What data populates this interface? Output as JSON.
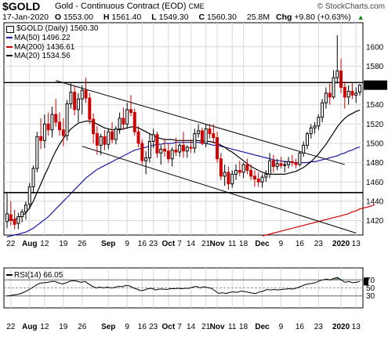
{
  "header": {
    "symbol": "$GOLD",
    "name": "Gold - Continuous Contract (EOD)",
    "exchange": "CME",
    "site": "© StockCharts.com",
    "date": "17-Jan-2020",
    "open_label": "O",
    "open": "1553.00",
    "high_label": "H",
    "high": "1561.40",
    "low_label": "L",
    "low": "1549.30",
    "close_label": "C",
    "close": "1560.30",
    "volume": "25.8M",
    "chg_label": "Chg",
    "chg": "+9.80 (+0.63%)",
    "chg_arrow": "▲"
  },
  "legend": {
    "main": "$GOLD (Daily) 1560.30",
    "ma50": "MA(50) 1496.22",
    "ma200": "MA(200) 1436.61",
    "ma20": "MA(20) 1534.56"
  },
  "rsi_legend": "RSI(14) 66.05",
  "colors": {
    "up": "#000000",
    "down": "#cc0000",
    "ma50": "#1a1a9c",
    "ma200": "#cc0000",
    "ma20": "#000000",
    "rsi_fill": "#6f8f6f"
  },
  "chart_data": [
    {
      "type": "candlestick",
      "title": "$GOLD (Daily) 1560.30",
      "ylim": [
        1405,
        1625
      ],
      "y_ticks": [
        "1420",
        "1440",
        "1460",
        "1480",
        "1500",
        "1520",
        "1540",
        "1560",
        "1580",
        "1600"
      ],
      "x_ticks": [
        "22",
        "Aug",
        "12",
        "19",
        "26",
        "Sep",
        "9",
        "16",
        "23",
        "Oct",
        "7",
        "14",
        "21",
        "Nov",
        "11",
        "18",
        "Dec",
        "9",
        "16",
        "23",
        "2020",
        "13"
      ],
      "candles": [
        [
          1419,
          1448,
          1412,
          1427
        ],
        [
          1426,
          1440,
          1415,
          1420
        ],
        [
          1421,
          1431,
          1411,
          1416
        ],
        [
          1417,
          1428,
          1411,
          1424
        ],
        [
          1424,
          1432,
          1418,
          1429
        ],
        [
          1429,
          1440,
          1421,
          1436
        ],
        [
          1437,
          1459,
          1432,
          1455
        ],
        [
          1455,
          1477,
          1448,
          1474
        ],
        [
          1474,
          1512,
          1470,
          1507
        ],
        [
          1507,
          1526,
          1494,
          1503
        ],
        [
          1503,
          1530,
          1495,
          1520
        ],
        [
          1520,
          1532,
          1508,
          1514
        ],
        [
          1514,
          1538,
          1506,
          1530
        ],
        [
          1530,
          1546,
          1517,
          1522
        ],
        [
          1522,
          1532,
          1508,
          1514
        ],
        [
          1514,
          1526,
          1497,
          1508
        ],
        [
          1508,
          1545,
          1503,
          1541
        ],
        [
          1541,
          1562,
          1536,
          1553
        ],
        [
          1553,
          1560,
          1529,
          1535
        ],
        [
          1535,
          1552,
          1522,
          1546
        ],
        [
          1546,
          1560,
          1530,
          1555
        ],
        [
          1555,
          1568,
          1542,
          1547
        ],
        [
          1547,
          1552,
          1520,
          1525
        ],
        [
          1525,
          1531,
          1500,
          1510
        ],
        [
          1510,
          1518,
          1488,
          1498
        ],
        [
          1498,
          1510,
          1488,
          1507
        ],
        [
          1507,
          1514,
          1493,
          1499
        ],
        [
          1499,
          1515,
          1494,
          1512
        ],
        [
          1512,
          1522,
          1500,
          1504
        ],
        [
          1504,
          1518,
          1499,
          1515
        ],
        [
          1515,
          1532,
          1510,
          1526
        ],
        [
          1526,
          1537,
          1514,
          1520
        ],
        [
          1520,
          1542,
          1515,
          1535
        ],
        [
          1535,
          1550,
          1528,
          1532
        ],
        [
          1532,
          1536,
          1508,
          1512
        ],
        [
          1512,
          1518,
          1496,
          1500
        ],
        [
          1500,
          1504,
          1478,
          1482
        ],
        [
          1482,
          1492,
          1468,
          1485
        ],
        [
          1485,
          1510,
          1480,
          1502
        ],
        [
          1502,
          1515,
          1495,
          1509
        ],
        [
          1509,
          1512,
          1485,
          1490
        ],
        [
          1490,
          1498,
          1478,
          1494
        ],
        [
          1494,
          1505,
          1486,
          1492
        ],
        [
          1492,
          1500,
          1480,
          1484
        ],
        [
          1484,
          1496,
          1476,
          1493
        ],
        [
          1493,
          1506,
          1487,
          1491
        ],
        [
          1491,
          1500,
          1486,
          1498
        ],
        [
          1498,
          1512,
          1485,
          1492
        ],
        [
          1492,
          1498,
          1485,
          1496
        ],
        [
          1496,
          1504,
          1490,
          1495
        ],
        [
          1495,
          1515,
          1490,
          1510
        ],
        [
          1510,
          1520,
          1506,
          1513
        ],
        [
          1513,
          1516,
          1498,
          1500
        ],
        [
          1500,
          1520,
          1496,
          1515
        ],
        [
          1515,
          1520,
          1505,
          1510
        ],
        [
          1510,
          1520,
          1500,
          1506
        ],
        [
          1506,
          1512,
          1480,
          1484
        ],
        [
          1484,
          1490,
          1462,
          1466
        ],
        [
          1466,
          1478,
          1456,
          1470
        ],
        [
          1470,
          1476,
          1452,
          1458
        ],
        [
          1458,
          1472,
          1454,
          1468
        ],
        [
          1468,
          1478,
          1462,
          1472
        ],
        [
          1472,
          1482,
          1466,
          1470
        ],
        [
          1470,
          1480,
          1464,
          1478
        ],
        [
          1478,
          1484,
          1468,
          1472
        ],
        [
          1472,
          1478,
          1462,
          1466
        ],
        [
          1466,
          1472,
          1455,
          1463
        ],
        [
          1463,
          1470,
          1455,
          1460
        ],
        [
          1460,
          1468,
          1454,
          1465
        ],
        [
          1465,
          1472,
          1460,
          1468
        ],
        [
          1468,
          1490,
          1464,
          1482
        ],
        [
          1482,
          1488,
          1470,
          1476
        ],
        [
          1476,
          1484,
          1472,
          1479
        ],
        [
          1479,
          1486,
          1474,
          1477
        ],
        [
          1477,
          1482,
          1470,
          1478
        ],
        [
          1478,
          1486,
          1474,
          1481
        ],
        [
          1481,
          1488,
          1476,
          1480
        ],
        [
          1480,
          1484,
          1474,
          1478
        ],
        [
          1478,
          1492,
          1476,
          1490
        ],
        [
          1490,
          1502,
          1486,
          1498
        ],
        [
          1498,
          1512,
          1494,
          1510
        ],
        [
          1510,
          1520,
          1505,
          1516
        ],
        [
          1516,
          1522,
          1510,
          1518
        ],
        [
          1518,
          1530,
          1514,
          1527
        ],
        [
          1527,
          1546,
          1522,
          1542
        ],
        [
          1542,
          1558,
          1536,
          1552
        ],
        [
          1552,
          1562,
          1540,
          1548
        ],
        [
          1548,
          1576,
          1546,
          1568
        ],
        [
          1568,
          1612,
          1562,
          1575
        ],
        [
          1575,
          1588,
          1552,
          1558
        ],
        [
          1558,
          1564,
          1536,
          1548
        ],
        [
          1548,
          1560,
          1540,
          1554
        ],
        [
          1554,
          1562,
          1546,
          1550
        ],
        [
          1550,
          1558,
          1542,
          1552
        ],
        [
          1553,
          1561.4,
          1549.3,
          1560.3
        ]
      ],
      "ma20": [
        1421,
        1420,
        1421,
        1423,
        1425,
        1428,
        1433,
        1440,
        1449,
        1458,
        1467,
        1475,
        1484,
        1492,
        1499,
        1505,
        1510,
        1515,
        1518,
        1521,
        1522,
        1523,
        1523,
        1522,
        1520,
        1518,
        1516,
        1515,
        1514,
        1514,
        1514,
        1515,
        1516,
        1517,
        1517,
        1516,
        1514,
        1512,
        1510,
        1508,
        1506,
        1505,
        1504,
        1504,
        1504,
        1503,
        1503,
        1503,
        1503,
        1503,
        1503,
        1503,
        1502,
        1502,
        1502,
        1501,
        1500,
        1498,
        1496,
        1493,
        1491,
        1488,
        1485,
        1482,
        1479,
        1476,
        1474,
        1472,
        1470,
        1469,
        1468,
        1468,
        1468,
        1468,
        1468,
        1469,
        1470,
        1471,
        1473,
        1475,
        1478,
        1481,
        1485,
        1489,
        1494,
        1499,
        1505,
        1511,
        1517,
        1522,
        1526,
        1529,
        1531,
        1533,
        1534.56
      ],
      "ma50": [
        1403,
        1404,
        1405,
        1406,
        1407,
        1408,
        1410,
        1412,
        1415,
        1418,
        1421,
        1424,
        1428,
        1432,
        1436,
        1440,
        1444,
        1448,
        1452,
        1456,
        1460,
        1464,
        1467,
        1470,
        1473,
        1475,
        1477,
        1479,
        1481,
        1483,
        1485,
        1487,
        1489,
        1491,
        1493,
        1494,
        1495,
        1496,
        1497,
        1498,
        1499,
        1499,
        1500,
        1500,
        1500,
        1501,
        1501,
        1501,
        1501,
        1501,
        1501,
        1501,
        1500,
        1500,
        1499,
        1498,
        1498,
        1497,
        1496,
        1495,
        1494,
        1493,
        1492,
        1491,
        1490,
        1489,
        1488,
        1487,
        1486,
        1485,
        1484,
        1483,
        1482,
        1482,
        1481,
        1481,
        1480,
        1480,
        1480,
        1480,
        1480,
        1481,
        1481,
        1482,
        1483,
        1484,
        1485,
        1486,
        1487,
        1489,
        1490,
        1492,
        1493,
        1495,
        1496.22
      ],
      "ma200_visible_from_index": 68,
      "ma200": [
        1404,
        1405,
        1406,
        1407,
        1408,
        1409,
        1410,
        1411,
        1412,
        1413,
        1414,
        1415,
        1416,
        1417,
        1418,
        1419,
        1420,
        1421,
        1422,
        1423,
        1424,
        1425,
        1426,
        1427,
        1429,
        1430,
        1432,
        1433,
        1434,
        1435,
        1436.61
      ],
      "horizontal_lines": [
        1563,
        1449
      ],
      "trend_lines": [
        {
          "from": [
            13,
            1565
          ],
          "to": [
            90,
            1478
          ]
        },
        {
          "from": [
            20,
            1497
          ],
          "to": [
            93,
            1407
          ]
        }
      ],
      "index_labels": {
        "Aug": 6,
        "Sep": 27,
        "Oct": 43,
        "Nov": 56,
        "Dec": 68,
        "2020": 89
      }
    },
    {
      "type": "line",
      "title": "RSI(14) 66.05",
      "ylim": [
        0,
        100
      ],
      "y_ticks": [
        "30",
        "50",
        "70"
      ],
      "reference_lines": [
        70,
        50,
        30
      ],
      "values": [
        30,
        31,
        33,
        34,
        37,
        41,
        46,
        52,
        58,
        62,
        63,
        64,
        66,
        66,
        62,
        60,
        63,
        67,
        68,
        66,
        64,
        66,
        60,
        54,
        50,
        52,
        50,
        52,
        50,
        51,
        54,
        53,
        56,
        55,
        50,
        47,
        43,
        45,
        48,
        49,
        45,
        47,
        47,
        46,
        48,
        48,
        49,
        48,
        49,
        49,
        52,
        54,
        50,
        53,
        51,
        49,
        43,
        36,
        38,
        36,
        39,
        40,
        39,
        42,
        41,
        39,
        37,
        36,
        40,
        42,
        46,
        45,
        46,
        45,
        46,
        47,
        48,
        47,
        50,
        53,
        57,
        60,
        61,
        63,
        67,
        70,
        72,
        70,
        74,
        76,
        70,
        64,
        66,
        63,
        64,
        66.05
      ],
      "x_ticks": [
        "22",
        "Aug",
        "12",
        "19",
        "26",
        "Sep",
        "9",
        "16",
        "23",
        "Oct",
        "7",
        "14",
        "21",
        "Nov",
        "11",
        "18",
        "Dec",
        "9",
        "16",
        "23",
        "2020",
        "13"
      ]
    }
  ]
}
